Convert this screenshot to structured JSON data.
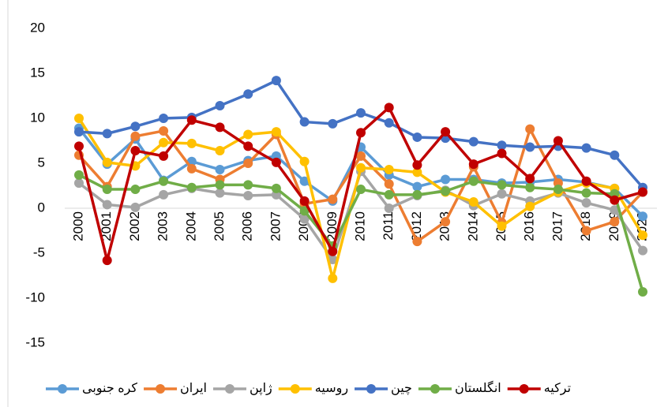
{
  "chart_data": {
    "type": "line",
    "categories": [
      "2000",
      "2001",
      "2002",
      "2003",
      "2004",
      "2005",
      "2006",
      "2007",
      "2008",
      "2009",
      "2010",
      "2011",
      "2012",
      "2013",
      "2014",
      "2015",
      "2016",
      "2017",
      "2018",
      "2019",
      "2020"
    ],
    "series": [
      {
        "name": "کره جنوبی",
        "color": "#5b9bd5",
        "values": [
          8.9,
          4.9,
          7.7,
          3.1,
          5.2,
          4.3,
          5.3,
          5.8,
          3.0,
          0.8,
          6.8,
          3.7,
          2.4,
          3.2,
          3.2,
          2.8,
          2.9,
          3.2,
          2.9,
          2.2,
          -0.9
        ]
      },
      {
        "name": "ایران",
        "color": "#ed7d31",
        "values": [
          5.9,
          2.4,
          8.0,
          8.6,
          4.4,
          3.2,
          5.0,
          8.2,
          0.5,
          1.0,
          5.8,
          2.7,
          -3.7,
          -1.5,
          4.6,
          -1.6,
          8.8,
          2.8,
          -2.5,
          -1.5,
          1.8
        ]
      },
      {
        "name": "ژاپن",
        "color": "#a5a5a5",
        "values": [
          2.8,
          0.4,
          0.1,
          1.5,
          2.2,
          1.7,
          1.4,
          1.5,
          -1.2,
          -5.7,
          4.1,
          0.0,
          1.4,
          2.0,
          0.3,
          1.6,
          0.8,
          1.7,
          0.6,
          -0.2,
          -4.7
        ]
      },
      {
        "name": "روسیه",
        "color": "#ffc000",
        "values": [
          10.0,
          5.1,
          4.7,
          7.3,
          7.2,
          6.4,
          8.2,
          8.5,
          5.2,
          -7.8,
          4.5,
          4.3,
          4.0,
          1.8,
          0.7,
          -2.0,
          0.2,
          1.8,
          2.8,
          2.2,
          -3.0
        ]
      },
      {
        "name": "چین",
        "color": "#4472c4",
        "values": [
          8.5,
          8.3,
          9.1,
          10.0,
          10.1,
          11.4,
          12.7,
          14.2,
          9.6,
          9.4,
          10.6,
          9.5,
          7.9,
          7.8,
          7.4,
          7.0,
          6.8,
          6.9,
          6.7,
          5.9,
          2.3
        ]
      },
      {
        "name": "انگلستان",
        "color": "#70ad47",
        "values": [
          3.7,
          2.1,
          2.1,
          3.0,
          2.3,
          2.6,
          2.6,
          2.2,
          -0.3,
          -4.2,
          2.1,
          1.5,
          1.5,
          1.9,
          3.0,
          2.6,
          2.3,
          2.1,
          1.7,
          1.6,
          -9.3
        ]
      },
      {
        "name": "ترکیه",
        "color": "#c00000",
        "values": [
          6.9,
          -5.8,
          6.4,
          5.8,
          9.8,
          9.0,
          6.9,
          5.1,
          0.8,
          -4.8,
          8.4,
          11.2,
          4.8,
          8.5,
          4.9,
          6.1,
          3.3,
          7.5,
          3.0,
          0.9,
          1.8
        ]
      }
    ],
    "ylim": [
      -15,
      20
    ],
    "yticks": [
      -15,
      -10,
      -5,
      0,
      5,
      10,
      15,
      20
    ],
    "grid": false
  }
}
